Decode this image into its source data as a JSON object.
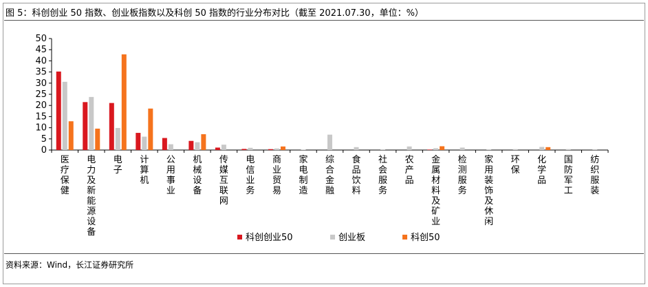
{
  "figure": {
    "title": "图 5：科创创业 50 指数、创业板指数以及科创 50 指数的行业分布对比（截至 2021.07.30，单位：%）",
    "source": "资料来源：Wind，长江证券研究所"
  },
  "chart_data": {
    "type": "bar",
    "categories": [
      "医疗保健",
      "电力及新能源设备",
      "电子",
      "计算机",
      "公用事业",
      "机械设备",
      "传媒互联网",
      "电信业务",
      "商业贸易",
      "家电制造",
      "综合金融",
      "食品饮料",
      "社会服务",
      "农产品",
      "金属材料及矿业",
      "检测服务",
      "家用装饰及休闲",
      "环保",
      "化学品",
      "国防军工",
      "纺织服装"
    ],
    "series": [
      {
        "name": "科创创业50",
        "color": "#d9181f",
        "values": [
          35.2,
          21.5,
          21.1,
          7.7,
          5.4,
          4.1,
          1.1,
          0.5,
          0.4,
          0,
          0,
          0,
          0,
          0,
          0.2,
          0,
          0,
          0,
          0,
          0,
          0
        ]
      },
      {
        "name": "创业板",
        "color": "#c8c8c8",
        "values": [
          30.6,
          23.8,
          9.9,
          6.0,
          2.6,
          3.5,
          2.4,
          1.0,
          0.7,
          0.2,
          6.9,
          1.3,
          0.3,
          1.6,
          0.8,
          1.1,
          0.3,
          0.4,
          1.4,
          0.4,
          0.1
        ]
      },
      {
        "name": "科创50",
        "color": "#f5731d",
        "values": [
          12.9,
          9.6,
          42.9,
          18.6,
          0,
          7.1,
          0,
          0,
          1.6,
          0,
          0,
          0,
          0,
          0,
          1.7,
          0,
          0,
          0,
          1.3,
          0,
          0
        ]
      }
    ],
    "yticks": [
      0,
      5,
      10,
      15,
      20,
      25,
      30,
      35,
      40,
      45,
      50
    ],
    "ylim": [
      0,
      50
    ],
    "legend": "bottom",
    "grid": false
  }
}
